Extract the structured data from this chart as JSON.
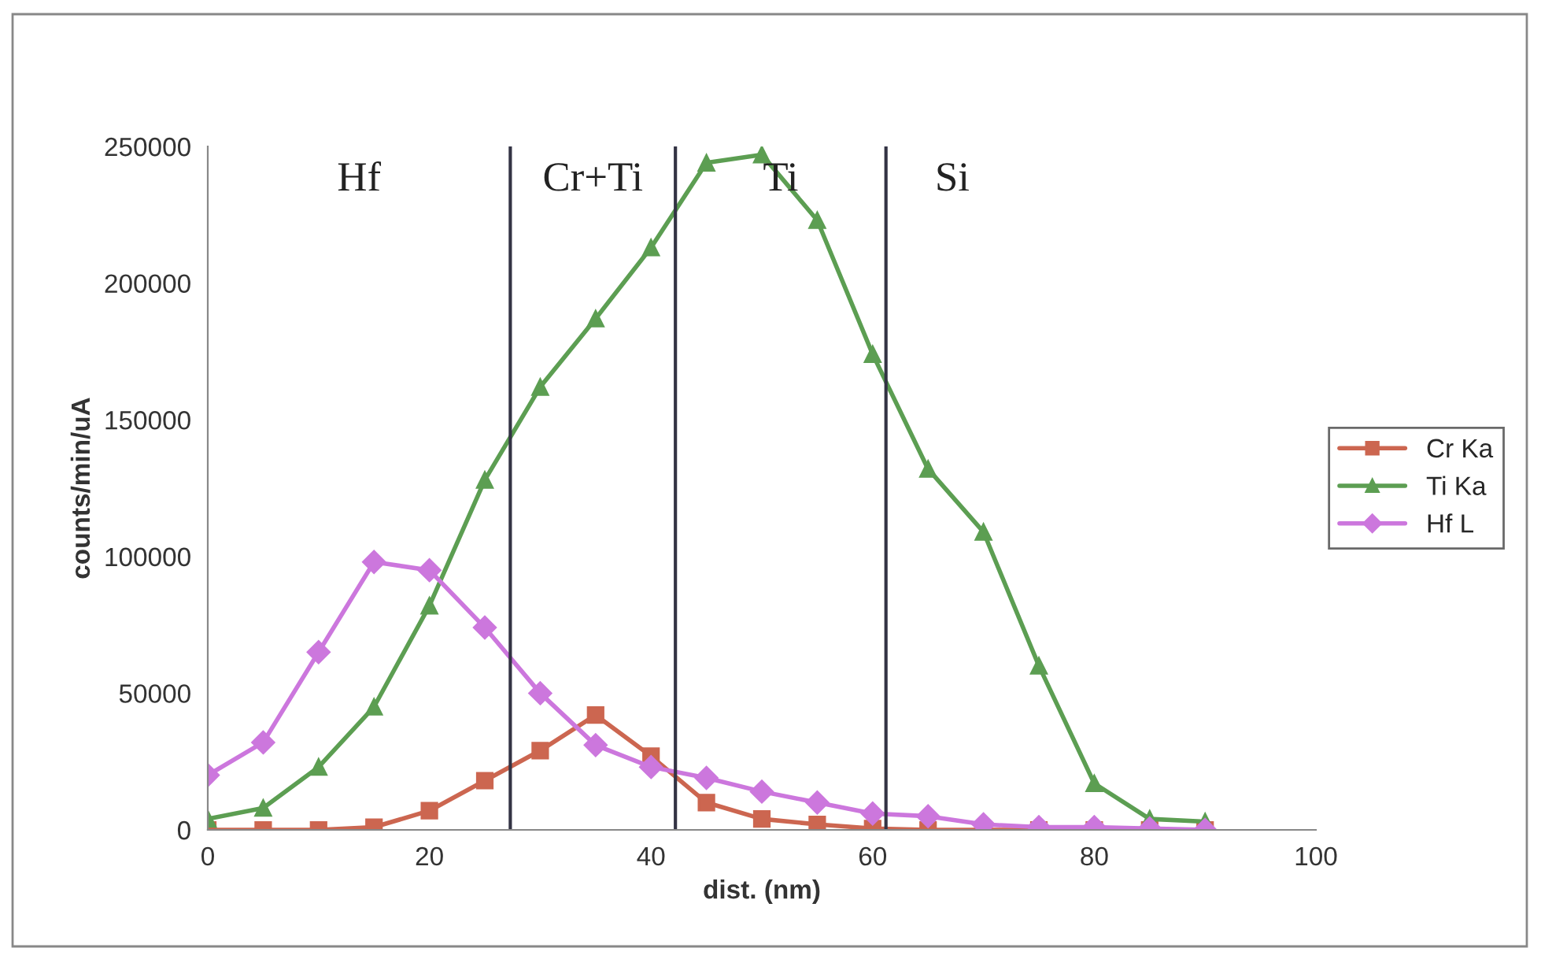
{
  "chart_data": {
    "type": "line",
    "xlabel": "dist. (nm)",
    "ylabel": "counts/min/uA",
    "x": [
      0,
      5,
      10,
      15,
      20,
      25,
      30,
      35,
      40,
      45,
      50,
      55,
      60,
      65,
      70,
      75,
      80,
      85,
      90
    ],
    "series": [
      {
        "name": "Cr Ka",
        "color": "#cc6650",
        "marker": "square",
        "values": [
          0,
          0,
          0,
          1000,
          7000,
          18000,
          29000,
          42000,
          27000,
          10000,
          4000,
          2000,
          500,
          0,
          0,
          0,
          0,
          0,
          0
        ]
      },
      {
        "name": "Ti Ka",
        "color": "#5c9e52",
        "marker": "triangle",
        "values": [
          4000,
          8000,
          23000,
          45000,
          82000,
          128000,
          162000,
          187000,
          213000,
          244000,
          247000,
          223000,
          174000,
          132000,
          109000,
          60000,
          17000,
          4000,
          3000
        ]
      },
      {
        "name": "Hf L",
        "color": "#cc77dd",
        "marker": "diamond",
        "values": [
          20000,
          32000,
          65000,
          98000,
          95000,
          74000,
          50000,
          31000,
          23000,
          19000,
          14000,
          10000,
          6000,
          5000,
          2000,
          1000,
          1000,
          500,
          0
        ]
      }
    ],
    "xlim": [
      0,
      100
    ],
    "xticks": [
      0,
      20,
      40,
      60,
      80,
      100
    ],
    "ylim": [
      0,
      250000
    ],
    "yticks": [
      0,
      50000,
      100000,
      150000,
      200000,
      250000
    ],
    "ref_lines": [
      {
        "axis": "x",
        "value": 27.3,
        "color": "#333344"
      },
      {
        "axis": "x",
        "value": 42.2,
        "color": "#333344"
      },
      {
        "axis": "x",
        "value": 61.2,
        "color": "#333344"
      }
    ],
    "annotations": [
      "Hf",
      "Cr+Ti",
      "Ti",
      "Si"
    ],
    "grid": false,
    "legend": "right",
    "line_style": "solid"
  }
}
